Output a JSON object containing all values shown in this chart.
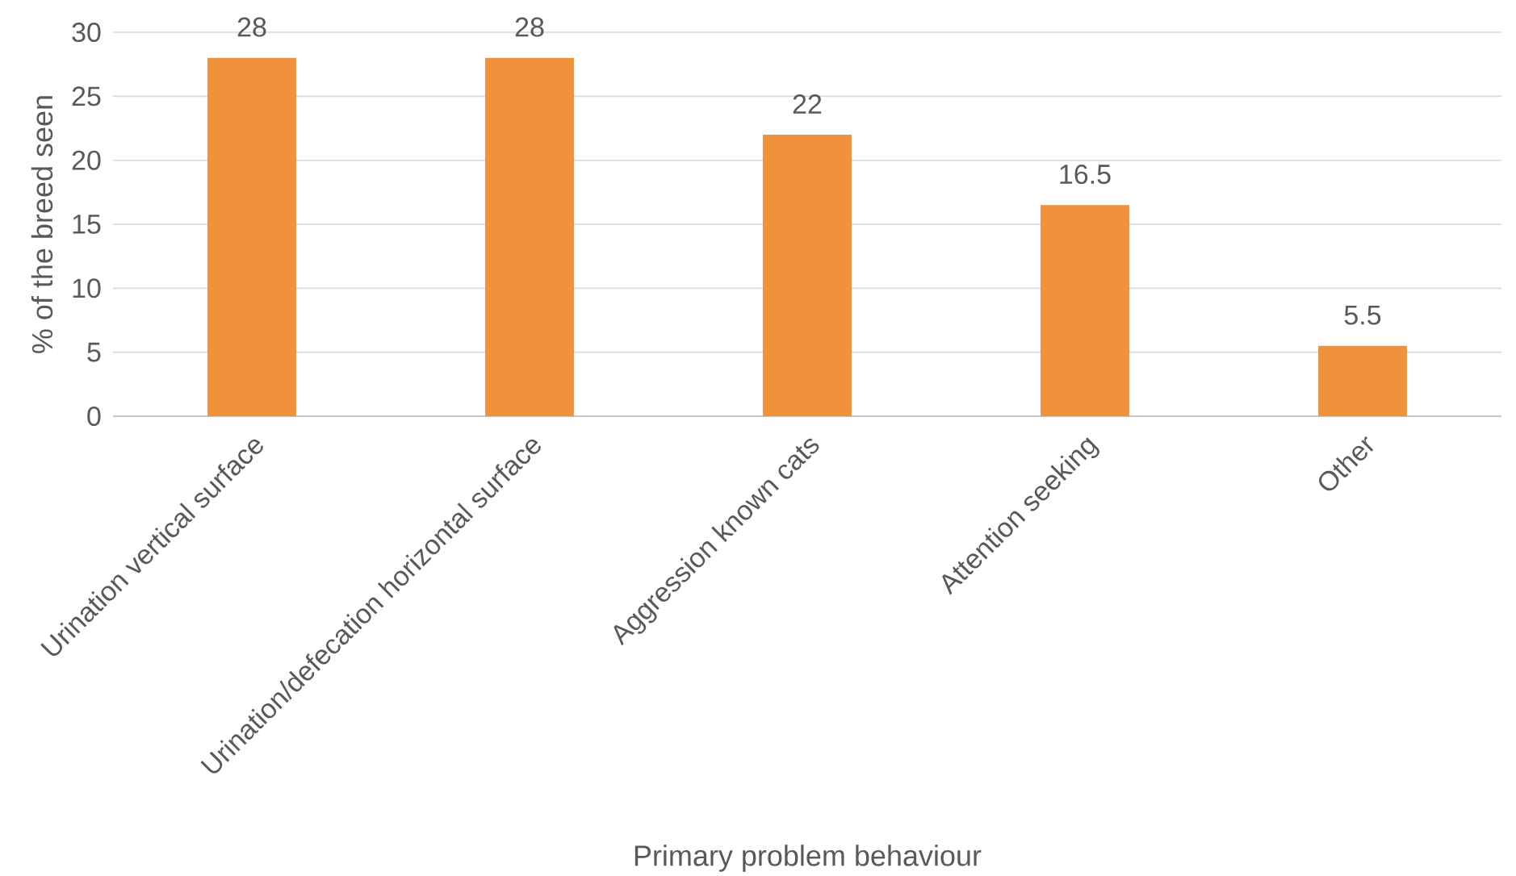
{
  "chart_data": {
    "type": "bar",
    "xlabel": "Primary problem behaviour",
    "ylabel": "% of the breed seen",
    "categories": [
      "Urination vertical surface",
      "Urination/defecation horizontal surface",
      "Aggression known cats",
      "Attention seeking",
      "Other"
    ],
    "values": [
      28,
      28,
      22,
      16.5,
      5.5
    ],
    "color": "#f0923b",
    "ylim": [
      0,
      30
    ],
    "yticks": [
      0,
      5,
      10,
      15,
      20,
      25,
      30
    ],
    "grid": "y",
    "data_labels": true
  }
}
